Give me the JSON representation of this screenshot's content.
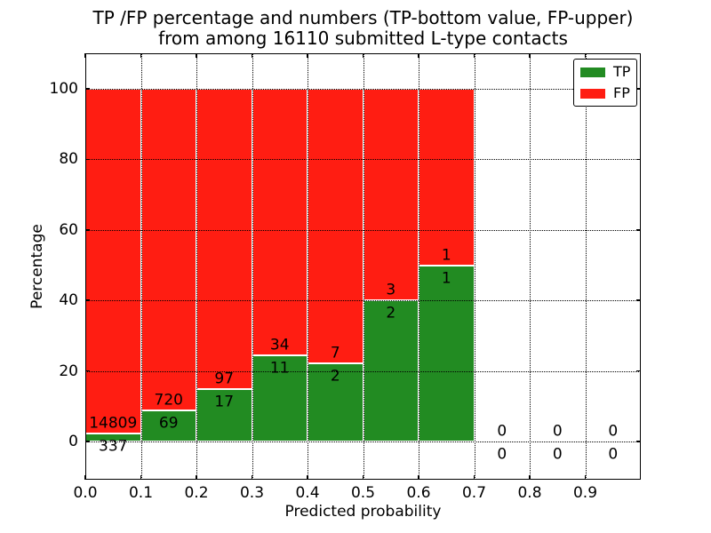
{
  "chart_data": {
    "type": "bar",
    "stacked": true,
    "title_line1": "TP /FP percentage and numbers (TP-bottom value, FP-upper)",
    "title_line2": "from among 16110 submitted L-type contacts",
    "xlabel": "Predicted probability",
    "ylabel": "Percentage",
    "x_tick_labels": [
      "0.0",
      "0.1",
      "0.2",
      "0.3",
      "0.4",
      "0.5",
      "0.6",
      "0.7",
      "0.8",
      "0.9"
    ],
    "y_tick_values": [
      0,
      20,
      40,
      60,
      80,
      100
    ],
    "xlim": [
      0.0,
      1.0
    ],
    "ylim": [
      -10.8,
      110.1
    ],
    "bin_width": 0.1,
    "grid": "dotted",
    "legend_position": "upper right",
    "total_submitted": 16110,
    "series": [
      {
        "name": "TP",
        "color": "#228b22",
        "position": "bottom"
      },
      {
        "name": "FP",
        "color": "#ff1d12",
        "position": "top"
      }
    ],
    "bins": [
      {
        "x_start": 0.0,
        "x_end": 0.1,
        "tp_count": 337,
        "fp_count": 14809,
        "tp_pct": 2.22
      },
      {
        "x_start": 0.1,
        "x_end": 0.2,
        "tp_count": 69,
        "fp_count": 720,
        "tp_pct": 8.75
      },
      {
        "x_start": 0.2,
        "x_end": 0.3,
        "tp_count": 17,
        "fp_count": 97,
        "tp_pct": 14.91
      },
      {
        "x_start": 0.3,
        "x_end": 0.4,
        "tp_count": 11,
        "fp_count": 34,
        "tp_pct": 24.44
      },
      {
        "x_start": 0.4,
        "x_end": 0.5,
        "tp_count": 2,
        "fp_count": 7,
        "tp_pct": 22.22
      },
      {
        "x_start": 0.5,
        "x_end": 0.6,
        "tp_count": 2,
        "fp_count": 3,
        "tp_pct": 40.0
      },
      {
        "x_start": 0.6,
        "x_end": 0.7,
        "tp_count": 1,
        "fp_count": 1,
        "tp_pct": 50.0
      },
      {
        "x_start": 0.7,
        "x_end": 0.8,
        "tp_count": 0,
        "fp_count": 0,
        "tp_pct": 0
      },
      {
        "x_start": 0.8,
        "x_end": 0.9,
        "tp_count": 0,
        "fp_count": 0,
        "tp_pct": 0
      },
      {
        "x_start": 0.9,
        "x_end": 1.0,
        "tp_count": 0,
        "fp_count": 0,
        "tp_pct": 0
      }
    ]
  }
}
